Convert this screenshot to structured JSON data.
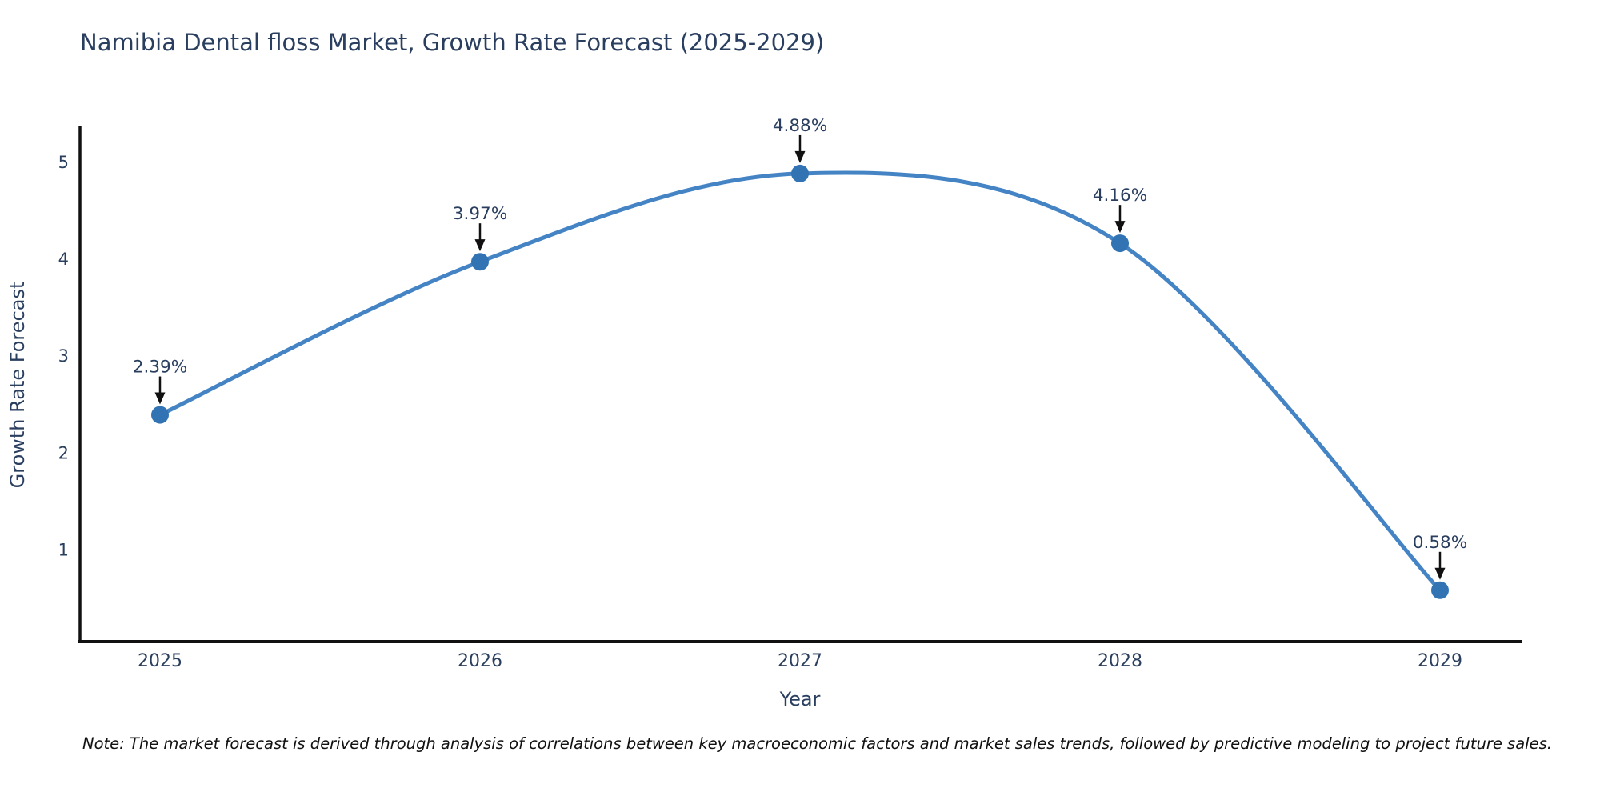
{
  "title": "Namibia Dental floss Market, Growth Rate Forecast (2025-2029)",
  "note": "Note: The market forecast is derived through analysis of correlations between key macroeconomic factors and market sales trends, followed by predictive modeling to project future sales.",
  "chart_data": {
    "type": "line",
    "title": "Namibia Dental floss Market, Growth Rate Forecast (2025-2029)",
    "xlabel": "Year",
    "ylabel": "Growth Rate Forecast",
    "x": [
      2025,
      2026,
      2027,
      2028,
      2029
    ],
    "series": [
      {
        "name": "Growth Rate Forecast",
        "values": [
          2.39,
          3.97,
          4.88,
          4.16,
          0.58
        ]
      }
    ],
    "point_labels": [
      "2.39%",
      "3.97%",
      "4.88%",
      "4.16%",
      "0.58%"
    ],
    "yticks": [
      1,
      2,
      3,
      4,
      5
    ],
    "xlim": [
      2024.75,
      2029.25
    ],
    "ylim": [
      0.05,
      5.35
    ],
    "grid": false,
    "legend": "none",
    "line_shape": "spline",
    "marker": "circle",
    "annotations": "value labels with down arrows above each point",
    "colors": {
      "line": "#4584c4",
      "marker": "#3173b3",
      "axis": "#111111",
      "text": "#2a3f5f",
      "arrow": "#111111",
      "background": "#ffffff"
    }
  }
}
